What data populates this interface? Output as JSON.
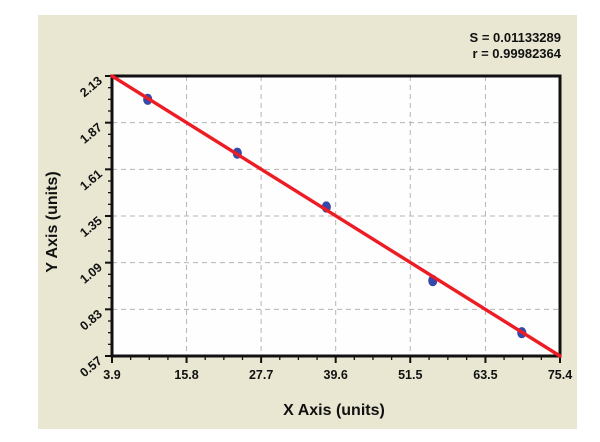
{
  "chart_data": {
    "type": "scatter",
    "title": "",
    "xlabel": "X Axis (units)",
    "ylabel": "Y Axis (units)",
    "xlim": [
      3.9,
      75.4
    ],
    "ylim": [
      0.57,
      2.13
    ],
    "x_ticks": [
      {
        "v": 3.9,
        "label": "3.9"
      },
      {
        "v": 15.8,
        "label": "15.8"
      },
      {
        "v": 27.7,
        "label": "27.7"
      },
      {
        "v": 39.6,
        "label": "39.6"
      },
      {
        "v": 51.5,
        "label": "51.5"
      },
      {
        "v": 63.5,
        "label": "63.5"
      },
      {
        "v": 75.4,
        "label": "75.4"
      }
    ],
    "y_ticks": [
      {
        "v": 0.57,
        "label": "0.57"
      },
      {
        "v": 0.83,
        "label": "0.83"
      },
      {
        "v": 1.09,
        "label": "1.09"
      },
      {
        "v": 1.35,
        "label": "1.35"
      },
      {
        "v": 1.61,
        "label": "1.61"
      },
      {
        "v": 1.87,
        "label": "1.87"
      },
      {
        "v": 2.13,
        "label": "2.13"
      }
    ],
    "minor_divisions": 4,
    "grid": "dashed",
    "legend_position": "none",
    "points": [
      {
        "x": 9.6,
        "y": 2.0
      },
      {
        "x": 23.9,
        "y": 1.7
      },
      {
        "x": 38.1,
        "y": 1.4
      },
      {
        "x": 55.1,
        "y": 0.99
      },
      {
        "x": 69.3,
        "y": 0.7
      }
    ],
    "fit_line": {
      "x1": 3.9,
      "y1": 2.13,
      "x2": 75.4,
      "y2": 0.57
    },
    "annotations": [
      "S = 0.01133289",
      "r = 0.99982364"
    ]
  },
  "colors": {
    "page_background": "#ffffff",
    "canvas_background": "#e9e7d2",
    "plot_background": "#fefefe",
    "fit_line": "#ed1c24",
    "point": "#3648a8",
    "grid": "#b4b4b4",
    "axis": "#111111",
    "text": "#111111"
  }
}
